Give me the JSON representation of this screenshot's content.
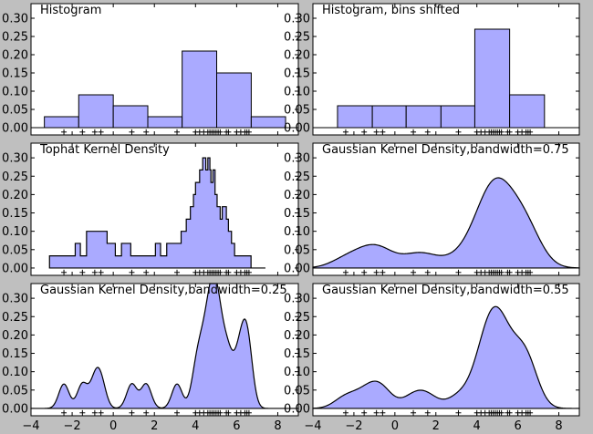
{
  "chart_data": {
    "type": "area",
    "samples": [
      -2.4,
      -0.9,
      -1.5,
      -0.6,
      0.9,
      1.6,
      3.1,
      4.0,
      4.2,
      4.4,
      4.6,
      4.7,
      4.8,
      4.9,
      5.0,
      5.1,
      5.2,
      5.5,
      5.6,
      6.0,
      6.2,
      6.4,
      6.5,
      6.6
    ],
    "xlim": [
      -4,
      9
    ],
    "xticks": [
      "−4",
      "−2",
      "0",
      "2",
      "4",
      "6",
      "8"
    ],
    "panels": [
      {
        "title": "Histogram",
        "kind": "bar",
        "ylim": [
          -0.02,
          0.34
        ],
        "yticks": [
          "0.00",
          "0.05",
          "0.10",
          "0.15",
          "0.20",
          "0.25",
          "0.30"
        ],
        "bins": [
          {
            "left": -3.35,
            "right": -1.68,
            "value": 0.03
          },
          {
            "left": -1.68,
            "right": 0.0,
            "value": 0.09
          },
          {
            "left": 0.0,
            "right": 1.68,
            "value": 0.06
          },
          {
            "left": 1.68,
            "right": 3.35,
            "value": 0.03
          },
          {
            "left": 3.35,
            "right": 5.03,
            "value": 0.21
          },
          {
            "left": 5.03,
            "right": 6.71,
            "value": 0.15
          },
          {
            "left": 6.71,
            "right": 8.38,
            "value": 0.03
          }
        ]
      },
      {
        "title": "Histogram, bins shifted",
        "kind": "bar",
        "ylim": [
          -0.02,
          0.34
        ],
        "yticks": [
          "0.00",
          "0.05",
          "0.10",
          "0.15",
          "0.20",
          "0.25",
          "0.30"
        ],
        "bins": [
          {
            "left": -2.8,
            "right": -1.1,
            "value": 0.06
          },
          {
            "left": -1.1,
            "right": 0.55,
            "value": 0.06
          },
          {
            "left": 0.55,
            "right": 2.25,
            "value": 0.06
          },
          {
            "left": 2.25,
            "right": 3.9,
            "value": 0.06
          },
          {
            "left": 3.9,
            "right": 5.6,
            "value": 0.27
          },
          {
            "left": 5.6,
            "right": 7.3,
            "value": 0.09
          }
        ]
      },
      {
        "title": "Tophat Kernel Density",
        "kind": "step",
        "ylim": [
          -0.02,
          0.34
        ],
        "yticks": [
          "0.00",
          "0.05",
          "0.10",
          "0.15",
          "0.20",
          "0.25",
          "0.30"
        ],
        "x": [
          -3.1,
          -1.85,
          -1.85,
          -1.6,
          -1.6,
          -1.3,
          -1.3,
          -0.3,
          -0.3,
          0.1,
          0.1,
          0.4,
          0.4,
          0.85,
          0.85,
          2.05,
          2.05,
          2.3,
          2.3,
          2.6,
          2.6,
          3.3,
          3.3,
          3.55,
          3.55,
          3.75,
          3.75,
          3.9,
          3.9,
          4.0,
          4.0,
          4.2,
          4.2,
          4.35,
          4.35,
          4.5,
          4.5,
          4.6,
          4.6,
          4.7,
          4.7,
          4.75,
          4.75,
          4.85,
          4.85,
          4.95,
          4.95,
          5.05,
          5.05,
          5.2,
          5.2,
          5.3,
          5.3,
          5.5,
          5.5,
          5.6,
          5.6,
          5.75,
          5.75,
          5.9,
          5.9,
          6.3,
          6.3,
          6.7,
          6.7,
          7.0,
          7.0,
          7.4,
          7.4
        ],
        "y": [
          0.033,
          0.033,
          0.067,
          0.067,
          0.033,
          0.033,
          0.1,
          0.1,
          0.067,
          0.067,
          0.033,
          0.033,
          0.067,
          0.067,
          0.033,
          0.033,
          0.067,
          0.067,
          0.033,
          0.033,
          0.067,
          0.067,
          0.1,
          0.1,
          0.133,
          0.133,
          0.167,
          0.167,
          0.2,
          0.2,
          0.233,
          0.233,
          0.267,
          0.267,
          0.3,
          0.3,
          0.267,
          0.267,
          0.3,
          0.3,
          0.267,
          0.267,
          0.233,
          0.233,
          0.267,
          0.267,
          0.2,
          0.2,
          0.167,
          0.167,
          0.133,
          0.133,
          0.167,
          0.167,
          0.133,
          0.133,
          0.1,
          0.1,
          0.067,
          0.067,
          0.033,
          0.033,
          0.033,
          0.033,
          0.0,
          0.0,
          0.0,
          0.0,
          0.0
        ]
      },
      {
        "title": "Gaussian Kernel Density,bandwidth=0.75",
        "kind": "kde",
        "bandwidth": 0.75,
        "ylim": [
          -0.02,
          0.34
        ],
        "yticks": [
          "0.00",
          "0.05",
          "0.10",
          "0.15",
          "0.20",
          "0.25",
          "0.30"
        ]
      },
      {
        "title": "Gaussian Kernel Density,bandwidth=0.25",
        "kind": "kde",
        "bandwidth": 0.25,
        "ylim": [
          -0.02,
          0.34
        ],
        "yticks": [
          "0.00",
          "0.05",
          "0.10",
          "0.15",
          "0.20",
          "0.25",
          "0.30"
        ]
      },
      {
        "title": "Gaussian Kernel Density,bandwidth=0.55",
        "kind": "kde",
        "bandwidth": 0.55,
        "ylim": [
          -0.02,
          0.34
        ],
        "yticks": [
          "0.00",
          "0.05",
          "0.10",
          "0.15",
          "0.20",
          "0.25",
          "0.30"
        ]
      }
    ]
  }
}
